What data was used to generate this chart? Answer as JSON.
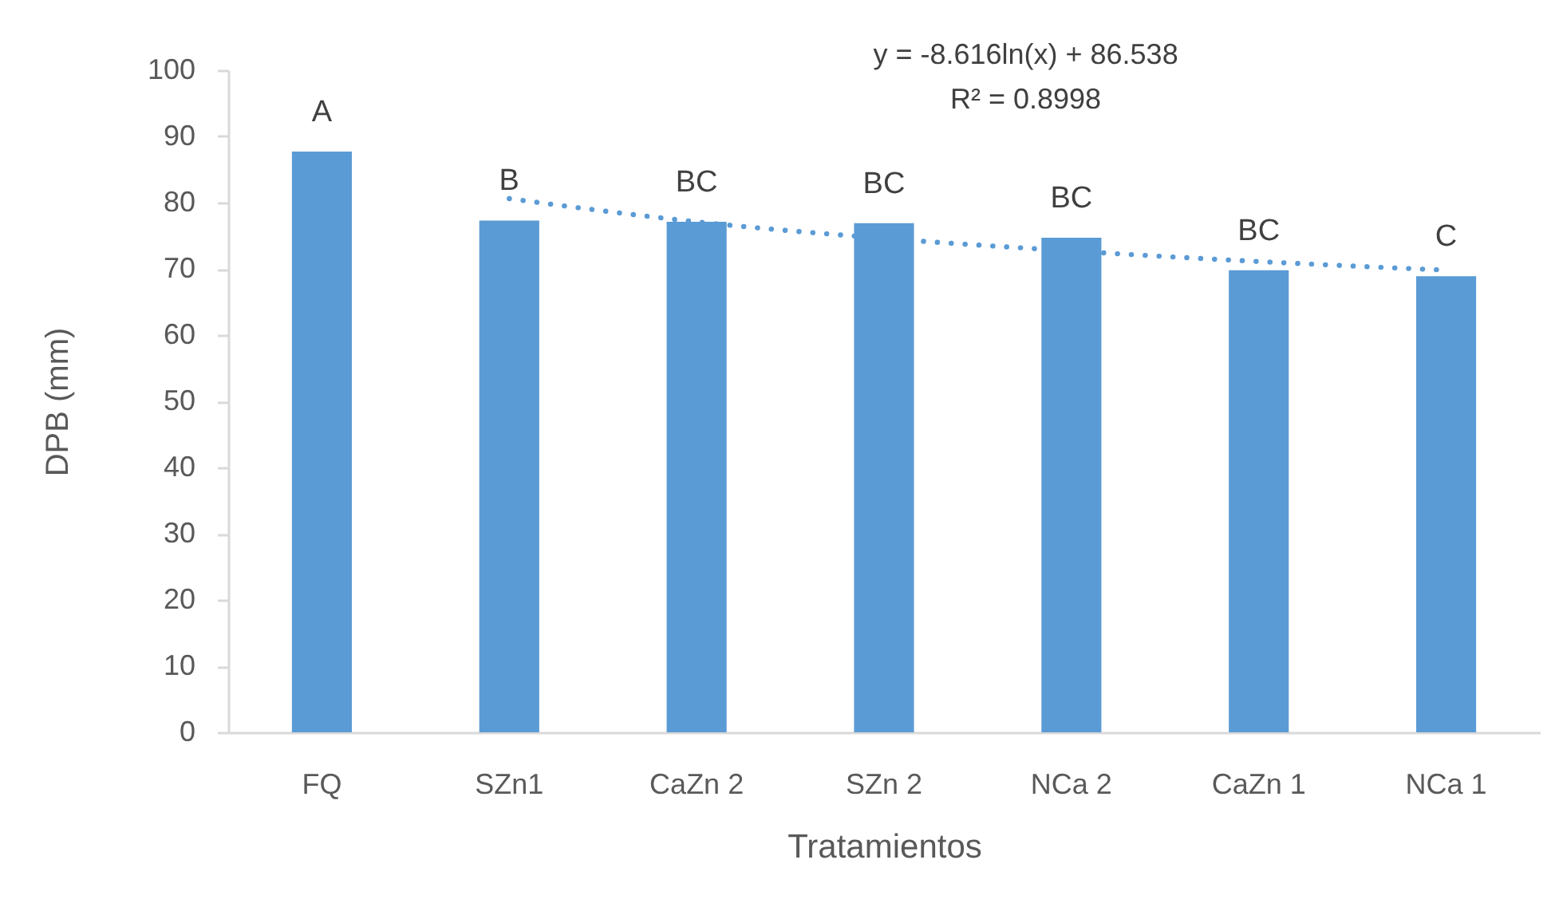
{
  "chart_data": {
    "type": "bar",
    "xlabel": "Tratamientos",
    "ylabel": "DPB (mm)",
    "categories": [
      "FQ",
      "SZn1",
      "CaZn 2",
      "SZn 2",
      "NCa 2",
      "CaZn 1",
      "NCa 1"
    ],
    "series": [
      {
        "color": "#5b9bd5",
        "values": [
          87.7,
          77.3,
          77.1,
          76.9,
          74.7,
          69.8,
          68.9
        ]
      },
      {
        "type": "line",
        "color": "#5b9bd5",
        "line_style": "dotted",
        "values": [
          null,
          80.6,
          77.1,
          74.6,
          72.7,
          71.1,
          69.8
        ]
      }
    ],
    "ylim": [
      0,
      100
    ],
    "yticks": [
      0,
      10,
      20,
      30,
      40,
      50,
      60,
      70,
      80,
      90,
      100
    ],
    "grid": false,
    "annotations": [
      "y = -8.616ln(x) + 86.538",
      "R² = 0.8998",
      {
        "text": "A",
        "x": "FQ",
        "y": 87.7
      },
      {
        "text": "B",
        "x": "SZn1",
        "y": 77.3
      },
      {
        "text": "BC",
        "x": "CaZn 2",
        "y": 77.1
      },
      {
        "text": "BC",
        "x": "SZn 2",
        "y": 76.9
      },
      {
        "text": "BC",
        "x": "NCa 2",
        "y": 74.7
      },
      {
        "text": "BC",
        "x": "CaZn 1",
        "y": 69.8
      },
      {
        "text": "C",
        "x": "NCa 1",
        "y": 68.9
      }
    ]
  }
}
